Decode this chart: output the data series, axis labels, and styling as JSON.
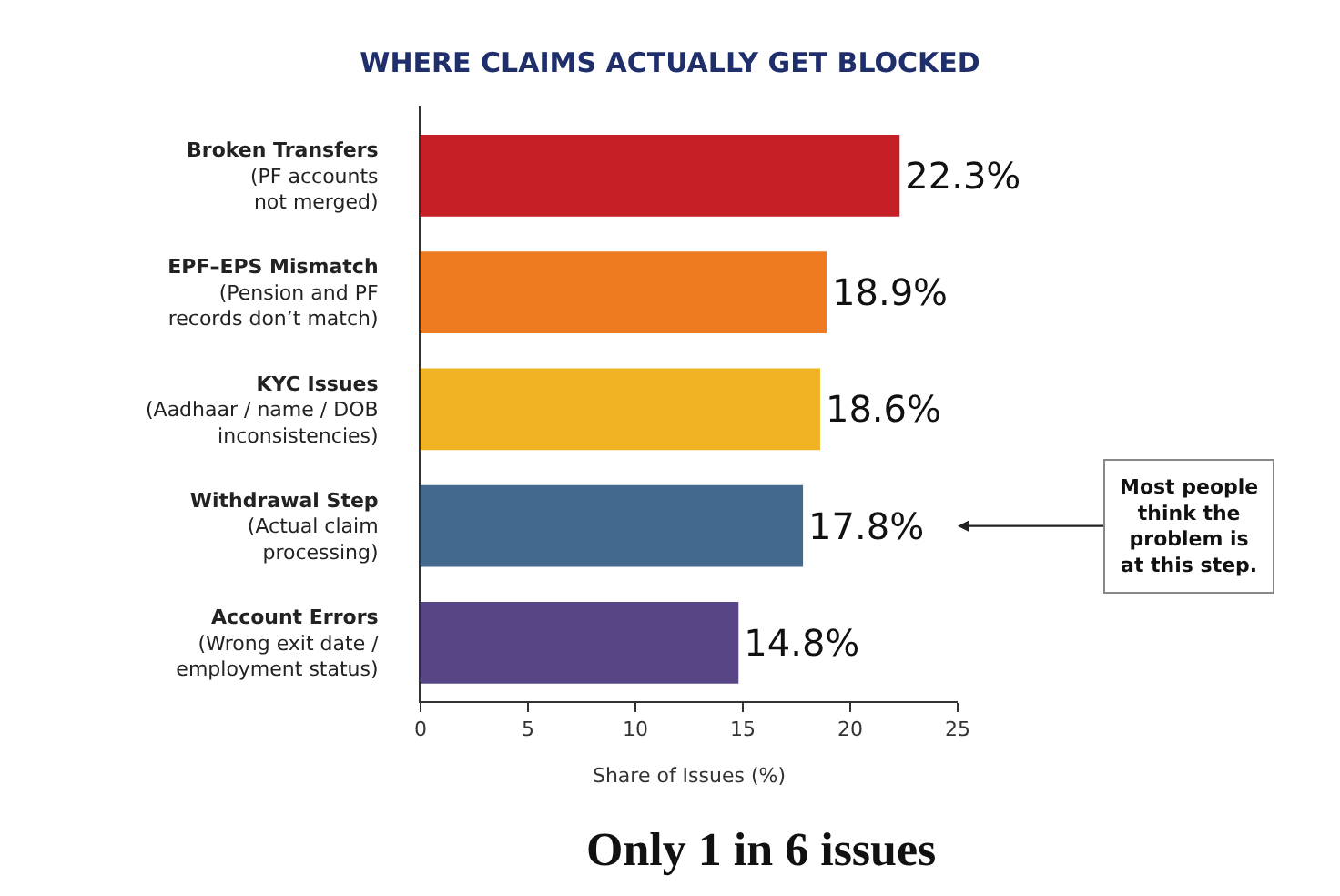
{
  "chart_data": {
    "type": "bar",
    "orientation": "horizontal",
    "title": "WHERE CLAIMS ACTUALLY GET BLOCKED",
    "xlabel": "Share of Issues (%)",
    "categories": [
      "Broken Transfers\n(PF accounts\nnot merged)",
      "EPF–EPS Mismatch\n(Pension and PF\nrecords don’t match)",
      "KYC Issues\n(Aadhaar / name / DOB\ninconsistencies)",
      "Withdrawal Step\n(Actual claim\nprocessing)",
      "Account Errors\n(Wrong exit date /\nemployment status)"
    ],
    "values": [
      22.3,
      18.9,
      18.6,
      17.8,
      14.8
    ],
    "colors": [
      "#c62026",
      "#ee7a22",
      "#f0b323",
      "#44698f",
      "#574586"
    ],
    "value_labels": [
      "22.3%",
      "18.9%",
      "18.6%",
      "17.8%",
      "14.8%"
    ],
    "xlim": [
      0,
      25
    ],
    "xticks": [
      0,
      5,
      10,
      15,
      20,
      25
    ],
    "legend": false,
    "annotations": [
      "Most people\nthink the\nproblem is\nat this step.",
      "Only 1 in 6 issues"
    ]
  }
}
